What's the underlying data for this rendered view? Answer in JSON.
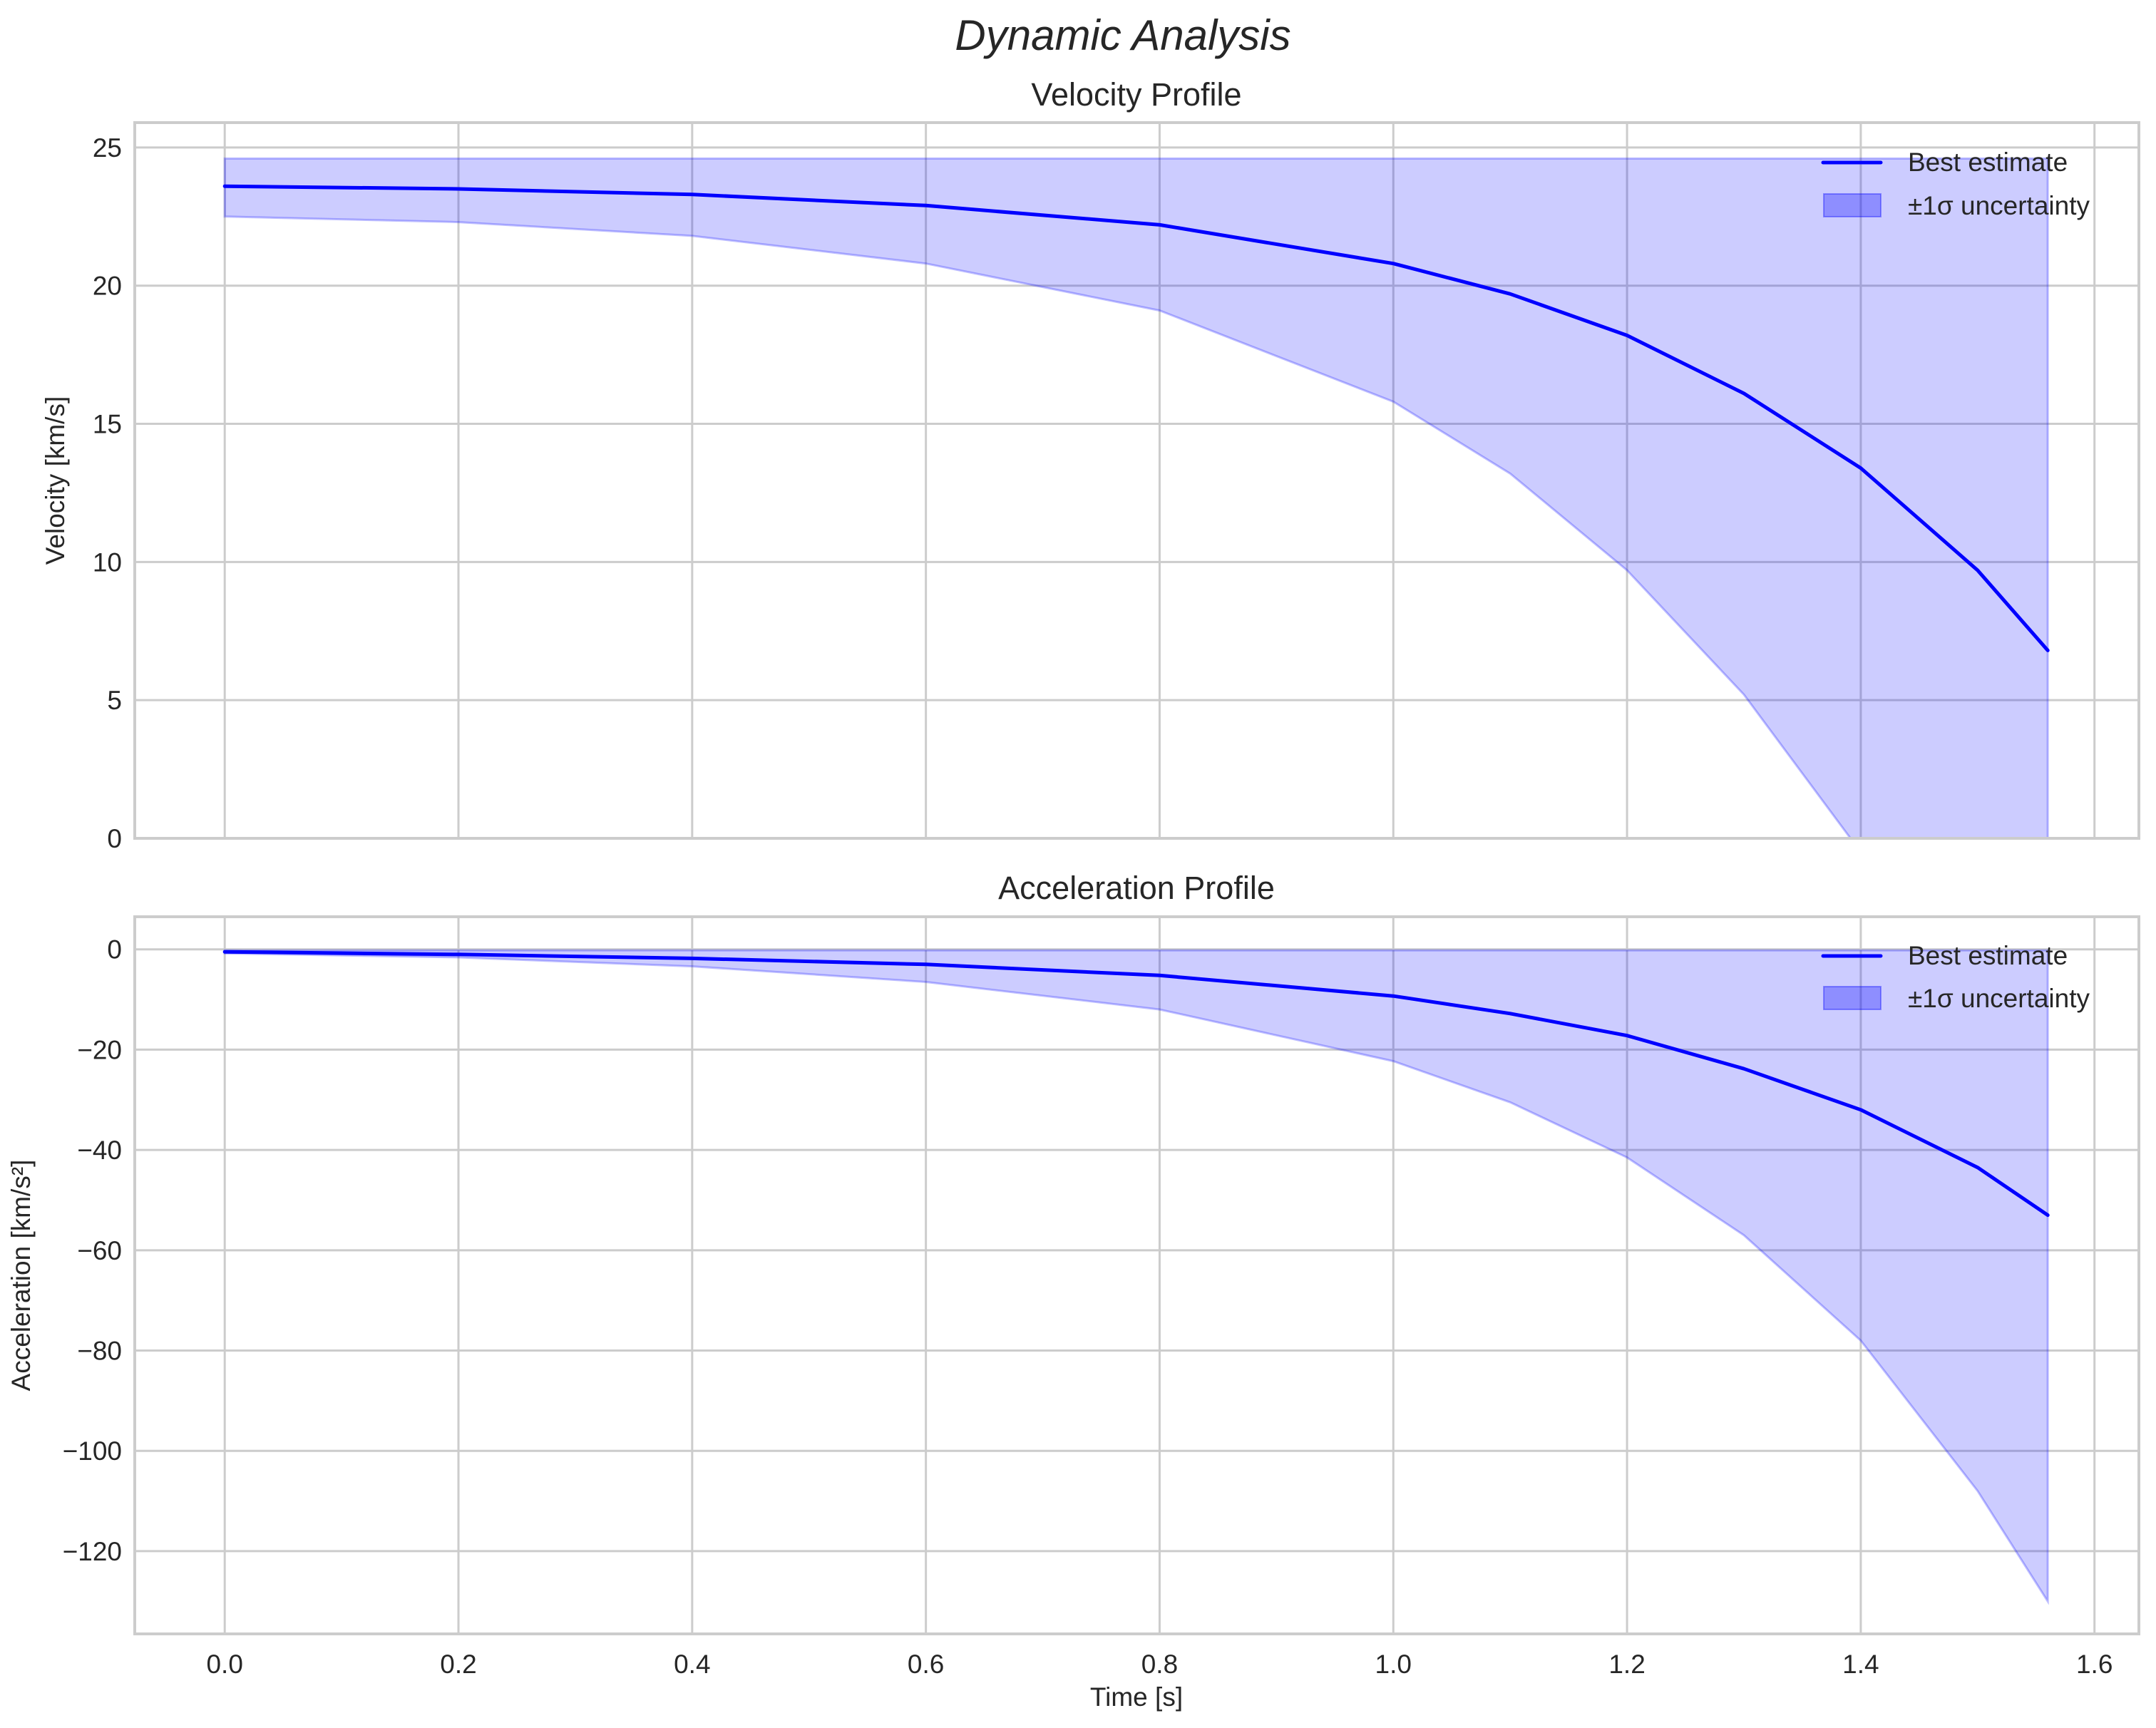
{
  "figure": {
    "title": "Dynamic Analysis"
  },
  "chart_data": [
    {
      "type": "line",
      "title": "Velocity Profile",
      "xlabel": "",
      "ylabel": "Velocity [km/s]",
      "xlim": [
        -0.077,
        1.638
      ],
      "ylim": [
        0,
        25.9
      ],
      "xticks": [
        "0.0",
        "0.2",
        "0.4",
        "0.6",
        "0.8",
        "1.0",
        "1.2",
        "1.4",
        "1.6"
      ],
      "yticks": [
        "0",
        "5",
        "10",
        "15",
        "20",
        "25"
      ],
      "grid": true,
      "legend": {
        "position": "upper right",
        "entries": [
          "Best estimate",
          "±1σ uncertainty"
        ]
      },
      "x": [
        0.0,
        0.2,
        0.4,
        0.6,
        0.8,
        1.0,
        1.1,
        1.2,
        1.3,
        1.4,
        1.5,
        1.56
      ],
      "series": [
        {
          "name": "Best estimate",
          "color": "#0000ff",
          "values": [
            23.6,
            23.5,
            23.3,
            22.9,
            22.2,
            20.8,
            19.7,
            18.2,
            16.1,
            13.4,
            9.7,
            6.8
          ]
        },
        {
          "name": "±1σ upper",
          "color": "#0000ff",
          "alpha": 0.2,
          "values": [
            24.6,
            24.6,
            24.6,
            24.6,
            24.6,
            24.6,
            24.6,
            24.6,
            24.6,
            24.6,
            24.6,
            24.6
          ]
        },
        {
          "name": "±1σ lower",
          "color": "#0000ff",
          "alpha": 0.2,
          "values": [
            22.5,
            22.3,
            21.8,
            20.8,
            19.1,
            15.8,
            13.2,
            9.7,
            5.2,
            -0.5,
            -8.0,
            -13.0
          ]
        }
      ]
    },
    {
      "type": "line",
      "title": "Acceleration Profile",
      "xlabel": "Time [s]",
      "ylabel": "Acceleration [km/s²]",
      "xlim": [
        -0.077,
        1.638
      ],
      "ylim": [
        -136.5,
        6.5
      ],
      "xticks": [
        "0.0",
        "0.2",
        "0.4",
        "0.6",
        "0.8",
        "1.0",
        "1.2",
        "1.4",
        "1.6"
      ],
      "yticks": [
        "0",
        "−20",
        "−40",
        "−60",
        "−80",
        "−100",
        "−120"
      ],
      "grid": true,
      "legend": {
        "position": "upper right",
        "entries": [
          "Best estimate",
          "±1σ uncertainty"
        ]
      },
      "x": [
        0.0,
        0.2,
        0.4,
        0.6,
        0.8,
        1.0,
        1.1,
        1.2,
        1.3,
        1.4,
        1.5,
        1.56
      ],
      "series": [
        {
          "name": "Best estimate",
          "color": "#0000ff",
          "values": [
            -0.5,
            -1.0,
            -1.8,
            -3.0,
            -5.2,
            -9.3,
            -12.8,
            -17.2,
            -23.8,
            -32.0,
            -43.5,
            -53.0
          ]
        },
        {
          "name": "±1σ upper",
          "color": "#0000ff",
          "alpha": 0.2,
          "values": [
            -0.2,
            -0.2,
            -0.2,
            -0.2,
            -0.2,
            -0.2,
            -0.2,
            -0.2,
            -0.2,
            -0.2,
            -0.2,
            -0.2
          ]
        },
        {
          "name": "±1σ lower",
          "color": "#0000ff",
          "alpha": 0.2,
          "values": [
            -0.8,
            -1.6,
            -3.4,
            -6.5,
            -12.0,
            -22.3,
            -30.5,
            -41.5,
            -57.0,
            -78.0,
            -108.0,
            -130.0
          ]
        }
      ]
    }
  ]
}
